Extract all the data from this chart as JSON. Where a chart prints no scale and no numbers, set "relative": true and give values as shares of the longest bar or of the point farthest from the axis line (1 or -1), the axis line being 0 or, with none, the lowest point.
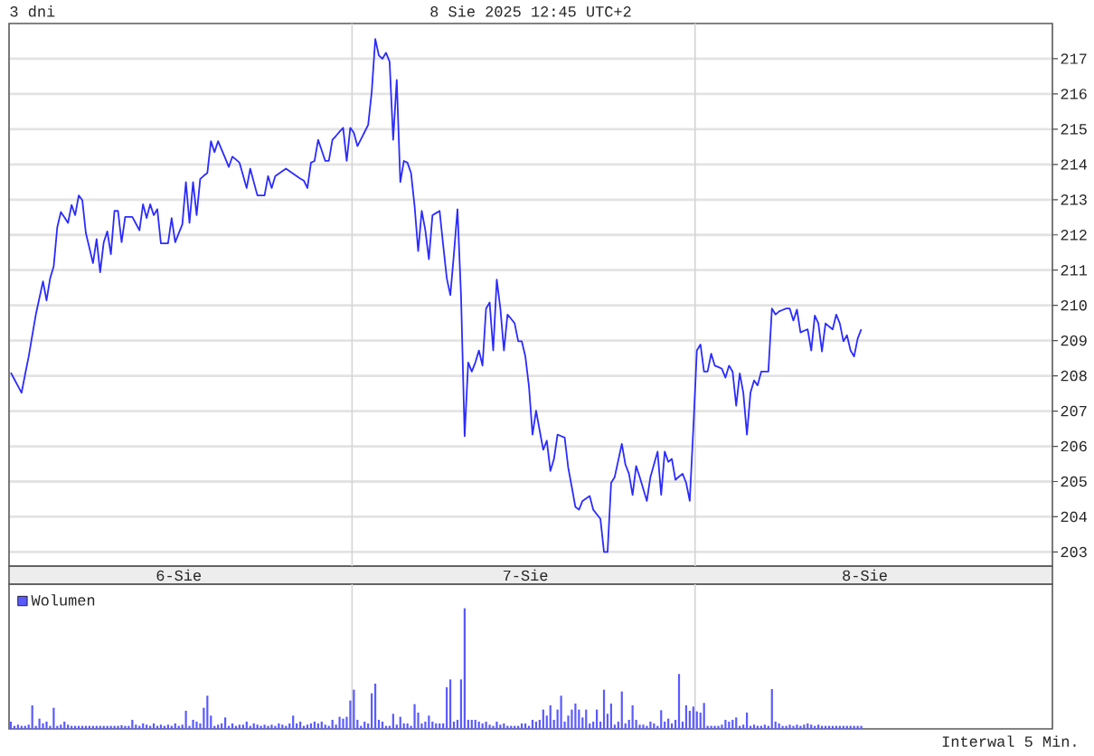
{
  "chart_data": [
    {
      "type": "line",
      "title": "3 dni",
      "subtitle": "8 Sie 2025 12:45 UTC+2",
      "categories": [
        null,
        null,
        null,
        null,
        null,
        null,
        null,
        null,
        null,
        null,
        null,
        null,
        null,
        null,
        null,
        null,
        null,
        null,
        null,
        null,
        null,
        null,
        null,
        null,
        null,
        null,
        null,
        null,
        null,
        null,
        null,
        null,
        null,
        null,
        null,
        null,
        null,
        null,
        null,
        null,
        null,
        null,
        null,
        null,
        null,
        null,
        null,
        "6-Sie",
        null,
        null,
        null,
        null,
        null,
        null,
        null,
        null,
        null,
        null,
        null,
        null,
        null,
        null,
        null,
        null,
        null,
        null,
        null,
        null,
        null,
        null,
        null,
        null,
        null,
        null,
        null,
        null,
        null,
        null,
        null,
        null,
        null,
        null,
        null,
        null,
        null,
        null,
        null,
        null,
        null,
        null,
        null,
        null,
        null,
        null,
        null,
        null,
        null,
        null,
        null,
        null,
        null,
        null,
        null,
        null,
        null,
        null,
        null,
        null,
        null,
        null,
        null,
        null,
        null,
        null,
        null,
        null,
        null,
        null,
        null,
        null,
        null,
        null,
        null,
        null,
        null,
        null,
        null,
        null,
        null,
        null,
        null,
        null,
        null,
        null,
        null,
        null,
        null,
        null,
        null,
        null,
        null,
        null,
        null,
        null,
        "7-Sie",
        null,
        null,
        null,
        null,
        null,
        null,
        null,
        null,
        null,
        null,
        null,
        null,
        null,
        null,
        null,
        null,
        null,
        null,
        null,
        null,
        null,
        null,
        null,
        null,
        null,
        null,
        null,
        null,
        null,
        null,
        null,
        null,
        null,
        null,
        null,
        null,
        null,
        null,
        null,
        null,
        null,
        null,
        null,
        null,
        null,
        null,
        null,
        null,
        null,
        null,
        null,
        null,
        null,
        null,
        null,
        null,
        null,
        null,
        null,
        null,
        null,
        null,
        null,
        null,
        null,
        null,
        null,
        null,
        null,
        null,
        null,
        null,
        null,
        null,
        null,
        null,
        null,
        null,
        null,
        null,
        null,
        null,
        null,
        null,
        null,
        null,
        null,
        null,
        null,
        null,
        null,
        null,
        null,
        null,
        "8-Sie",
        null,
        null,
        null,
        null,
        null,
        null,
        null,
        null,
        null,
        null,
        null,
        null,
        null,
        null,
        null,
        null,
        null,
        null,
        null,
        null,
        null,
        null,
        null,
        null,
        null,
        null,
        null,
        null,
        null,
        null,
        null,
        null,
        null,
        null,
        null,
        null,
        null,
        null,
        null,
        null,
        null,
        null,
        null,
        null,
        null,
        null,
        null,
        null,
        null,
        null,
        null,
        null
      ],
      "series": [
        {
          "color": "#2b2bff",
          "values": [
            208.09,
            207.9,
            207.71,
            207.52,
            208.04,
            208.55,
            209.15,
            209.74,
            210.21,
            210.68,
            210.14,
            210.77,
            211.11,
            212.22,
            212.65,
            212.5,
            212.34,
            212.85,
            212.56,
            213.12,
            212.99,
            212.05,
            211.63,
            211.2,
            211.88,
            210.94,
            211.79,
            212.1,
            211.45,
            212.68,
            212.68,
            211.79,
            212.51,
            212.51,
            212.51,
            212.32,
            212.13,
            212.87,
            212.48,
            212.87,
            212.56,
            212.73,
            211.76,
            211.76,
            211.76,
            212.48,
            211.79,
            212.05,
            212.3,
            213.5,
            212.34,
            213.5,
            212.56,
            213.59,
            213.68,
            213.76,
            214.66,
            214.35,
            214.66,
            214.42,
            214.18,
            213.93,
            214.22,
            214.14,
            214.05,
            213.69,
            213.33,
            213.88,
            213.5,
            213.12,
            213.12,
            213.12,
            213.67,
            213.33,
            213.67,
            213.74,
            213.81,
            213.88,
            213.81,
            213.74,
            213.67,
            213.6,
            213.54,
            213.33,
            214.05,
            214.1,
            214.7,
            214.4,
            214.1,
            214.1,
            214.7,
            214.81,
            214.93,
            215.04,
            214.1,
            215.04,
            214.9,
            214.52,
            214.72,
            214.92,
            215.12,
            216.06,
            217.56,
            217.09,
            217.0,
            217.17,
            216.92,
            214.7,
            216.4,
            213.5,
            214.1,
            214.05,
            213.76,
            212.82,
            211.54,
            212.68,
            212.13,
            211.31,
            212.56,
            212.62,
            212.68,
            211.71,
            210.77,
            210.29,
            211.45,
            212.73,
            210.26,
            206.29,
            208.38,
            208.12,
            208.38,
            208.72,
            208.29,
            209.91,
            210.08,
            208.72,
            210.73,
            209.91,
            208.72,
            209.74,
            209.62,
            209.49,
            208.98,
            208.98,
            208.55,
            207.7,
            206.33,
            207.01,
            206.45,
            205.9,
            206.16,
            205.3,
            205.64,
            206.33,
            206.29,
            206.25,
            205.39,
            204.84,
            204.28,
            204.2,
            204.45,
            204.52,
            204.59,
            204.2,
            204.07,
            203.94,
            203.0,
            203.0,
            204.96,
            205.13,
            205.6,
            206.07,
            205.48,
            205.22,
            204.62,
            205.44,
            205.13,
            204.79,
            204.45,
            205.13,
            205.49,
            205.85,
            204.62,
            205.85,
            205.56,
            205.64,
            205.05,
            205.14,
            205.22,
            204.96,
            204.45,
            206.5,
            208.72,
            208.89,
            208.12,
            208.12,
            208.63,
            208.29,
            208.25,
            208.2,
            207.95,
            208.29,
            208.12,
            207.15,
            208.07,
            207.52,
            206.33,
            207.52,
            207.87,
            207.73,
            208.12,
            208.12,
            208.12,
            209.91,
            209.74,
            209.83,
            209.87,
            209.91,
            209.91,
            209.57,
            209.88,
            209.23,
            209.28,
            209.32,
            208.72,
            209.71,
            209.49,
            208.69,
            209.49,
            209.4,
            209.32,
            209.74,
            209.49,
            208.98,
            209.15,
            208.72,
            208.55,
            209.06,
            209.32,
            null,
            null,
            null,
            null,
            null,
            null,
            null,
            null,
            null,
            null,
            null,
            null,
            null,
            null,
            null,
            null,
            null,
            null,
            null,
            null,
            null,
            null,
            null,
            null,
            null,
            null,
            null,
            null,
            null,
            null,
            null,
            null,
            null,
            null,
            null,
            null,
            null,
            null,
            null,
            null,
            null,
            null,
            null,
            null,
            null,
            null,
            null,
            null,
            null,
            null,
            null,
            null,
            null
          ]
        }
      ],
      "ylim": [
        202.6,
        218
      ],
      "yticks": [
        203,
        204,
        205,
        206,
        207,
        208,
        209,
        210,
        211,
        212,
        213,
        214,
        215,
        216,
        217
      ],
      "grid": "y"
    },
    {
      "type": "bar",
      "relative": true,
      "categories": [
        null,
        null,
        null,
        null,
        null,
        null,
        null,
        null,
        null,
        null,
        null,
        null,
        null,
        null,
        null,
        null,
        null,
        null,
        null,
        null,
        null,
        null,
        null,
        null,
        null,
        null,
        null,
        null,
        null,
        null,
        null,
        null,
        null,
        null,
        null,
        null,
        null,
        null,
        null,
        null,
        null,
        null,
        null,
        null,
        null,
        null,
        null,
        null,
        null,
        null,
        null,
        null,
        null,
        null,
        null,
        null,
        null,
        null,
        null,
        null,
        null,
        null,
        null,
        null,
        null,
        null,
        null,
        null,
        null,
        null,
        null,
        null,
        null,
        null,
        null,
        null,
        null,
        null,
        null,
        null,
        null,
        null,
        null,
        null,
        null,
        null,
        null,
        null,
        null,
        null,
        null,
        null,
        null,
        null,
        null,
        null,
        null,
        null,
        null,
        null,
        null,
        null,
        null,
        null,
        null,
        null,
        null,
        null,
        null,
        null,
        null,
        null,
        null,
        null,
        null,
        null,
        null,
        null,
        null,
        null,
        null,
        null,
        null,
        null,
        null,
        null,
        null,
        null,
        null,
        null,
        null,
        null,
        null,
        null,
        null,
        null,
        null,
        null,
        null,
        null,
        null,
        null,
        null,
        null,
        null,
        null,
        null,
        null,
        null,
        null,
        null,
        null,
        null,
        null,
        null,
        null,
        null,
        null,
        null,
        null,
        null,
        null,
        null,
        null,
        null,
        null,
        null,
        null,
        null,
        null,
        null,
        null,
        null,
        null,
        null,
        null,
        null,
        null,
        null,
        null,
        null,
        null,
        null,
        null,
        null,
        null,
        null,
        null,
        null,
        null,
        null,
        null,
        null,
        null,
        null,
        null,
        null,
        null,
        null,
        null,
        null,
        null,
        null,
        null,
        null,
        null,
        null,
        null,
        null,
        null,
        null,
        null,
        null,
        null,
        null,
        null,
        null,
        null,
        null,
        null,
        null,
        null,
        null,
        null,
        null,
        null,
        null,
        null,
        null,
        null,
        null,
        null,
        null,
        null,
        null,
        null,
        null,
        null,
        null,
        null,
        null,
        null,
        null,
        null,
        null,
        null,
        null,
        null,
        null,
        null,
        null,
        null,
        null,
        null,
        null,
        null,
        null,
        null,
        null,
        null,
        null,
        null,
        null,
        null,
        null,
        null,
        null,
        null,
        null,
        null,
        null,
        null,
        null,
        null,
        null,
        null,
        null,
        null,
        null,
        null,
        null,
        null,
        null,
        null,
        null,
        null,
        null,
        null,
        null,
        null,
        null,
        null
      ],
      "series": [
        {
          "name": "Wolumen",
          "color": "#5a5aff",
          "values": [
            0.06,
            0.025,
            0.035,
            0.025,
            0.025,
            0.035,
            0.195,
            0.025,
            0.085,
            0.045,
            0.06,
            0.025,
            0.175,
            0.025,
            0.035,
            0.06,
            0.035,
            0.025,
            0.025,
            0.025,
            0.025,
            0.025,
            0.025,
            0.025,
            0.025,
            0.025,
            0.025,
            0.025,
            0.025,
            0.025,
            0.025,
            0.03,
            0.025,
            0.025,
            0.075,
            0.035,
            0.025,
            0.045,
            0.035,
            0.025,
            0.045,
            0.025,
            0.035,
            0.025,
            0.035,
            0.025,
            0.045,
            0.025,
            0.035,
            0.15,
            0.025,
            0.075,
            0.06,
            0.045,
            0.175,
            0.275,
            0.11,
            0.025,
            0.035,
            0.045,
            0.095,
            0.025,
            0.045,
            0.025,
            0.035,
            0.035,
            0.06,
            0.025,
            0.045,
            0.035,
            0.025,
            0.035,
            0.025,
            0.035,
            0.025,
            0.045,
            0.035,
            0.025,
            0.045,
            0.11,
            0.045,
            0.06,
            0.025,
            0.035,
            0.045,
            0.06,
            0.045,
            0.06,
            0.035,
            0.025,
            0.075,
            0.035,
            0.1,
            0.085,
            0.1,
            0.235,
            0.325,
            0.075,
            0.025,
            0.06,
            0.045,
            0.295,
            0.375,
            0.075,
            0.06,
            0.025,
            0.025,
            0.125,
            0.035,
            0.1,
            0.045,
            0.045,
            0.025,
            0.205,
            0.135,
            0.045,
            0.06,
            0.11,
            0.06,
            0.045,
            0.045,
            0.045,
            0.345,
            0.41,
            0.06,
            0.075,
            0.41,
            1.0,
            0.075,
            0.075,
            0.075,
            0.06,
            0.045,
            0.06,
            0.035,
            0.025,
            0.06,
            0.035,
            0.045,
            0.025,
            0.025,
            0.025,
            0.025,
            0.045,
            0.045,
            0.025,
            0.075,
            0.06,
            0.075,
            0.16,
            0.11,
            0.195,
            0.075,
            0.16,
            0.275,
            0.06,
            0.11,
            0.16,
            0.21,
            0.16,
            0.095,
            0.16,
            0.045,
            0.06,
            0.16,
            0.06,
            0.325,
            0.125,
            0.21,
            0.035,
            0.06,
            0.31,
            0.045,
            0.075,
            0.195,
            0.075,
            0.035,
            0.035,
            0.025,
            0.06,
            0.045,
            0.025,
            0.155,
            0.06,
            0.085,
            0.045,
            0.075,
            0.455,
            0.06,
            0.195,
            0.15,
            0.185,
            0.145,
            0.135,
            0.215,
            0.025,
            0.025,
            0.025,
            0.025,
            0.035,
            0.075,
            0.06,
            0.075,
            0.095,
            0.025,
            0.035,
            0.135,
            0.025,
            0.035,
            0.025,
            0.025,
            0.035,
            0.025,
            0.33,
            0.06,
            0.045,
            0.025,
            0.025,
            0.035,
            0.025,
            0.035,
            0.025,
            0.035,
            0.045,
            0.035,
            0.025,
            0.035,
            0.025,
            0.025,
            0.025,
            0.025,
            0.025,
            0.025,
            0.025,
            0.025,
            0.025,
            0.025,
            0.025,
            0.025,
            null,
            null,
            null,
            null,
            null,
            null,
            null,
            null,
            null,
            null,
            null,
            null,
            null,
            null,
            null,
            null,
            null,
            null,
            null,
            null,
            null,
            null,
            null,
            null,
            null,
            null,
            null,
            null,
            null,
            null,
            null,
            null,
            null,
            null,
            null,
            null,
            null,
            null,
            null,
            null,
            null,
            null,
            null,
            null,
            null,
            null,
            null,
            null,
            null,
            null,
            null,
            null,
            null
          ]
        }
      ],
      "legend": "top left",
      "annotations": [
        "Interwal 5 Min."
      ]
    }
  ]
}
